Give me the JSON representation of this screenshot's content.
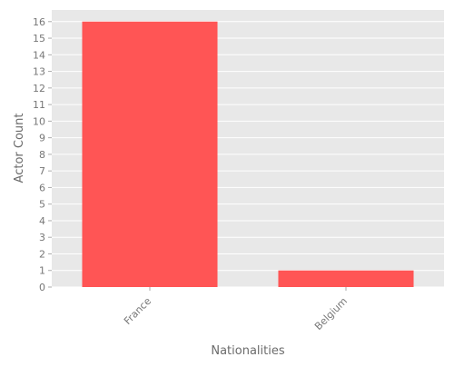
{
  "chart_data": {
    "type": "bar",
    "categories": [
      "France",
      "Belgium"
    ],
    "values": [
      16,
      1
    ],
    "title": "",
    "xlabel": "Nationalities",
    "ylabel": "Actor Count",
    "ylim": [
      0,
      16.7
    ],
    "yticks": [
      0,
      1,
      2,
      3,
      4,
      5,
      6,
      7,
      8,
      9,
      10,
      11,
      12,
      13,
      14,
      15,
      16
    ],
    "grid": true,
    "legend": "none",
    "colors": {
      "bar": "#ff5555",
      "panel_background": "#e8e8e8",
      "grid": "#ffffff",
      "text": "#777777"
    }
  }
}
